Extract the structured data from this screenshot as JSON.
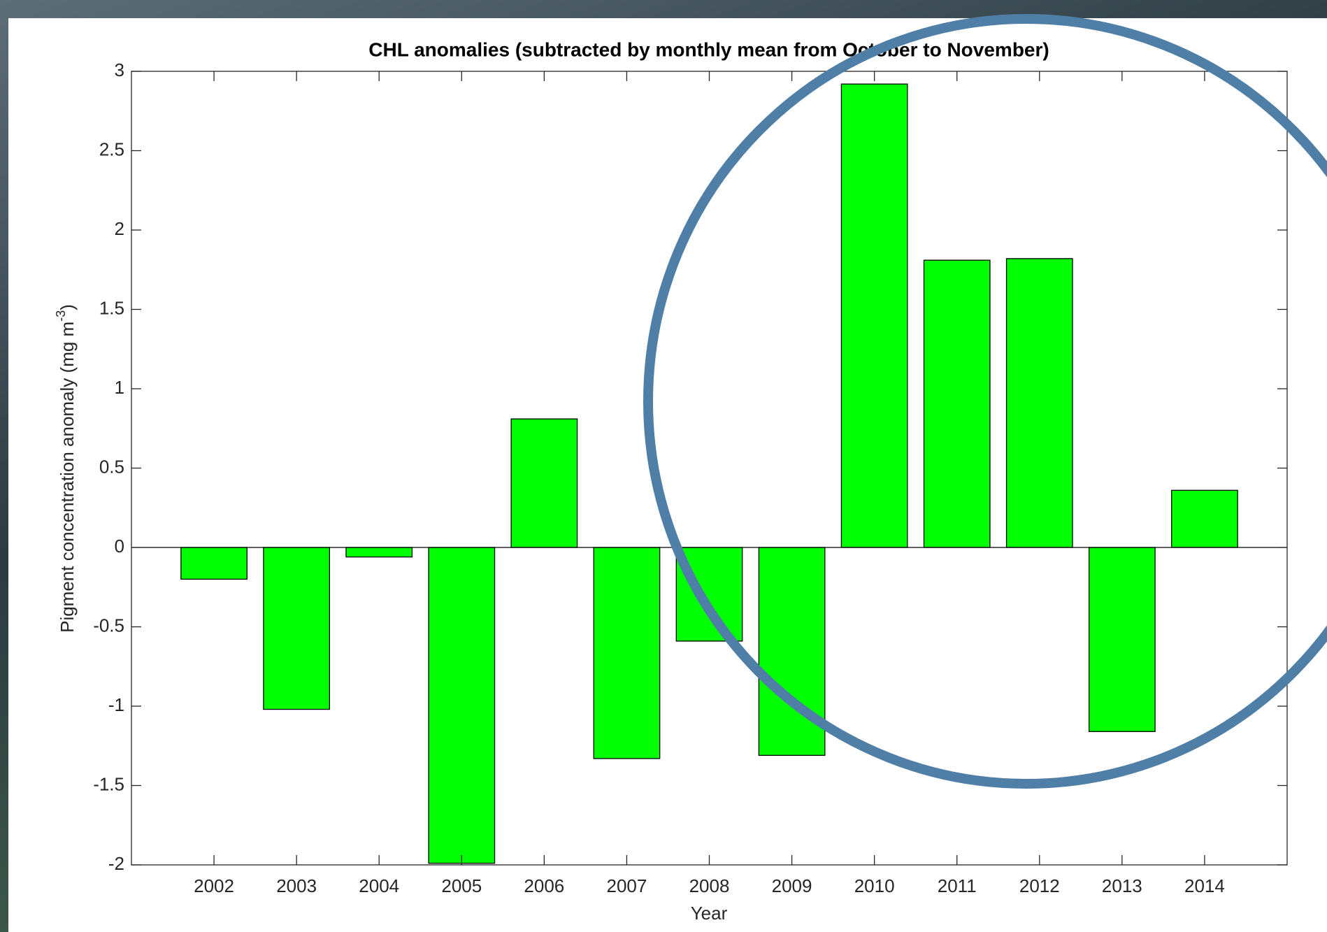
{
  "chart_data": {
    "type": "bar",
    "title": "CHL anomalies (subtracted by monthly mean from October to November)",
    "xlabel": "Year",
    "ylabel": [
      "Pigment concentration anomaly (mg m",
      "-3",
      ")"
    ],
    "x": [
      2002,
      2003,
      2004,
      2005,
      2006,
      2007,
      2008,
      2009,
      2010,
      2011,
      2012,
      2013,
      2014
    ],
    "values": [
      -0.2,
      -1.02,
      -0.06,
      -1.99,
      0.81,
      -1.33,
      -0.59,
      -1.31,
      2.92,
      1.81,
      1.82,
      -1.16,
      0.36
    ],
    "color": "#00ff00",
    "xlim": [
      2001,
      2015
    ],
    "xticks": [
      2002,
      2003,
      2004,
      2005,
      2006,
      2007,
      2008,
      2009,
      2010,
      2011,
      2012,
      2013,
      2014
    ],
    "ylim": [
      -2,
      3
    ],
    "yticks": [
      -2,
      -1.5,
      -1,
      -0.5,
      0,
      0.5,
      1,
      1.5,
      2,
      2.5,
      3
    ]
  }
}
